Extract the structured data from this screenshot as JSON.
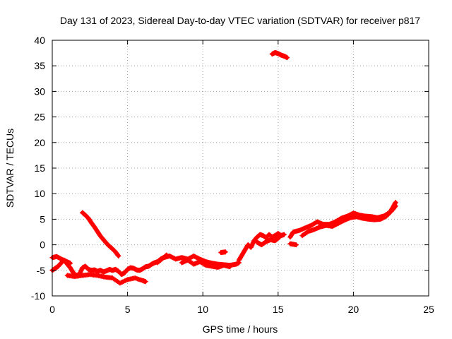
{
  "chart_data": {
    "type": "scatter",
    "title": "Day 131 of 2023, Sidereal Day-to-day VTEC variation (SDTVAR) for receiver p817",
    "xlabel": "GPS time / hours",
    "ylabel": "SDTVAR / TECUs",
    "xlim": [
      0,
      25
    ],
    "ylim": [
      -10,
      40
    ],
    "xticks": [
      0,
      5,
      10,
      15,
      20,
      25
    ],
    "yticks": [
      -10,
      -5,
      0,
      5,
      10,
      15,
      20,
      25,
      30,
      35,
      40
    ],
    "xtick_labels": [
      "0",
      "5",
      "10",
      "15",
      "20",
      "25"
    ],
    "ytick_labels": [
      "-10",
      "-5",
      "0",
      "5",
      "10",
      "15",
      "20",
      "25",
      "30",
      "35",
      "40"
    ],
    "grid": true,
    "marker": "+",
    "series": [
      {
        "name": "SDTVAR",
        "color": "#ff0000",
        "segments": [
          {
            "x": [
              0.0,
              0.2,
              0.4,
              0.6,
              0.8,
              1.0,
              1.2,
              1.4,
              1.6,
              1.8,
              2.0,
              2.2,
              2.4,
              2.6,
              2.8,
              3.0,
              3.2,
              3.4,
              3.6,
              3.8,
              4.0,
              4.2,
              4.4,
              4.6,
              4.8,
              5.0,
              5.2,
              5.4,
              5.6,
              5.8,
              6.0,
              6.2,
              6.4,
              6.6,
              6.8,
              7.0,
              7.2,
              7.4,
              7.6
            ],
            "y": [
              -5.0,
              -4.6,
              -4.2,
              -3.5,
              -3.0,
              -3.8,
              -4.5,
              -5.5,
              -6.0,
              -5.8,
              -4.5,
              -4.2,
              -4.8,
              -5.0,
              -4.9,
              -5.2,
              -5.0,
              -5.3,
              -5.1,
              -4.8,
              -5.0,
              -4.8,
              -5.2,
              -5.8,
              -5.5,
              -4.8,
              -4.5,
              -4.6,
              -4.9,
              -5.0,
              -4.7,
              -4.3,
              -4.2,
              -3.8,
              -3.5,
              -3.3,
              -2.8,
              -2.5,
              -2.0
            ]
          },
          {
            "x": [
              0.0,
              0.3,
              0.6,
              0.9,
              1.2
            ],
            "y": [
              -2.5,
              -2.3,
              -2.8,
              -3.2,
              -3.6
            ]
          },
          {
            "x": [
              1.0,
              1.5,
              2.0,
              2.5,
              3.0,
              3.5,
              4.0,
              4.5,
              5.0,
              5.5,
              6.0,
              6.2
            ],
            "y": [
              -6.0,
              -6.2,
              -6.0,
              -5.8,
              -6.0,
              -6.3,
              -6.5,
              -7.5,
              -6.8,
              -6.5,
              -7.0,
              -7.2
            ]
          },
          {
            "x": [
              2.0,
              2.2,
              2.4,
              2.6,
              2.8,
              3.0,
              3.2,
              3.4,
              3.6,
              3.8,
              4.0,
              4.2,
              4.4
            ],
            "y": [
              6.3,
              5.8,
              5.2,
              4.3,
              3.5,
              2.6,
              1.7,
              1.0,
              0.3,
              -0.3,
              -0.8,
              -1.4,
              -2.2
            ]
          },
          {
            "x": [
              7.0,
              7.4,
              7.8,
              8.2,
              8.6,
              9.0,
              9.4,
              9.8,
              10.2,
              10.6,
              11.0,
              11.4,
              11.8,
              12.2,
              12.4
            ],
            "y": [
              -3.5,
              -2.5,
              -2.2,
              -2.8,
              -2.5,
              -2.8,
              -2.2,
              -2.8,
              -3.3,
              -3.6,
              -3.8,
              -3.9,
              -4.0,
              -3.8,
              -3.5
            ]
          },
          {
            "x": [
              8.6,
              9.0,
              9.4,
              9.8,
              10.2,
              10.6,
              11.0,
              11.4,
              11.8
            ],
            "y": [
              -3.5,
              -3.0,
              -3.8,
              -3.3,
              -4.0,
              -4.2,
              -4.4,
              -4.0,
              -4.3
            ]
          },
          {
            "x": [
              11.2,
              11.5
            ],
            "y": [
              -1.5,
              -1.4
            ]
          },
          {
            "x": [
              12.4,
              12.6,
              12.8,
              13.0,
              13.2,
              13.4,
              13.6,
              13.8,
              14.0,
              14.2,
              14.4,
              14.6,
              14.8,
              15.0,
              15.2,
              15.4
            ],
            "y": [
              -3.0,
              -2.0,
              -1.0,
              0.0,
              -0.5,
              0.8,
              1.5,
              2.0,
              1.8,
              1.4,
              2.0,
              1.5,
              1.8,
              2.2,
              1.8,
              2.0
            ]
          },
          {
            "x": [
              13.6,
              13.9,
              14.2,
              14.5,
              14.8,
              15.1
            ],
            "y": [
              0.5,
              0.0,
              0.6,
              1.0,
              0.8,
              1.5
            ]
          },
          {
            "x": [
              14.6,
              14.8,
              15.0,
              15.2,
              15.4,
              15.6
            ],
            "y": [
              37.3,
              37.6,
              37.4,
              37.1,
              36.9,
              36.6
            ]
          },
          {
            "x": [
              15.8,
              16.0,
              16.4,
              16.8,
              17.2,
              17.6,
              18.0,
              18.4,
              18.8,
              19.2,
              19.6,
              20.0,
              20.4,
              20.8,
              21.2,
              21.6,
              22.0,
              22.4,
              22.6,
              22.8
            ],
            "y": [
              1.5,
              2.5,
              2.8,
              3.3,
              3.8,
              4.5,
              4.0,
              4.0,
              4.5,
              5.2,
              5.6,
              6.2,
              5.8,
              5.6,
              5.5,
              5.3,
              5.6,
              6.3,
              7.2,
              8.3
            ]
          },
          {
            "x": [
              16.6,
              17.0,
              17.4,
              17.8,
              18.2,
              18.6,
              19.0,
              19.4,
              19.8,
              20.2,
              20.6,
              21.0,
              21.4,
              21.8,
              22.2,
              22.6,
              22.8
            ],
            "y": [
              1.8,
              2.6,
              3.0,
              3.5,
              3.8,
              3.6,
              4.2,
              4.8,
              5.3,
              5.5,
              5.2,
              5.0,
              4.9,
              5.0,
              5.6,
              6.8,
              7.6
            ]
          },
          {
            "x": [
              15.8,
              16.2
            ],
            "y": [
              0.2,
              0.0
            ]
          }
        ]
      }
    ]
  }
}
